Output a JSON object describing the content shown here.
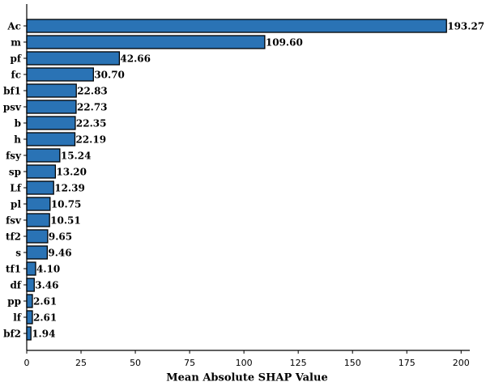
{
  "chart_data": {
    "type": "bar",
    "orientation": "horizontal",
    "x_label": "Mean Absolute SHAP Value",
    "categories": [
      "Ac",
      "m",
      "pf",
      "fc",
      "bf1",
      "psv",
      "b",
      "h",
      "fsy",
      "sp",
      "Lf",
      "pl",
      "fsv",
      "tf2",
      "s",
      "tf1",
      "df",
      "pp",
      "lf",
      "bf2"
    ],
    "values": [
      193.27,
      109.6,
      42.66,
      30.7,
      22.83,
      22.73,
      22.35,
      22.19,
      15.24,
      13.2,
      12.39,
      10.75,
      10.51,
      9.65,
      9.46,
      4.1,
      3.46,
      2.61,
      2.61,
      1.94
    ],
    "value_labels": [
      "193.27",
      "109.60",
      "42.66",
      "30.70",
      "22.83",
      "22.73",
      "22.35",
      "22.19",
      "15.24",
      "13.20",
      "12.39",
      "10.75",
      "10.51",
      "9.65",
      "9.46",
      "4.10",
      "3.46",
      "2.61",
      "2.61",
      "1.94"
    ],
    "color": "#2a73b5",
    "xlim": [
      0,
      204
    ],
    "xticks": [
      0,
      25,
      50,
      75,
      100,
      125,
      150,
      175,
      200
    ],
    "grid": false
  }
}
